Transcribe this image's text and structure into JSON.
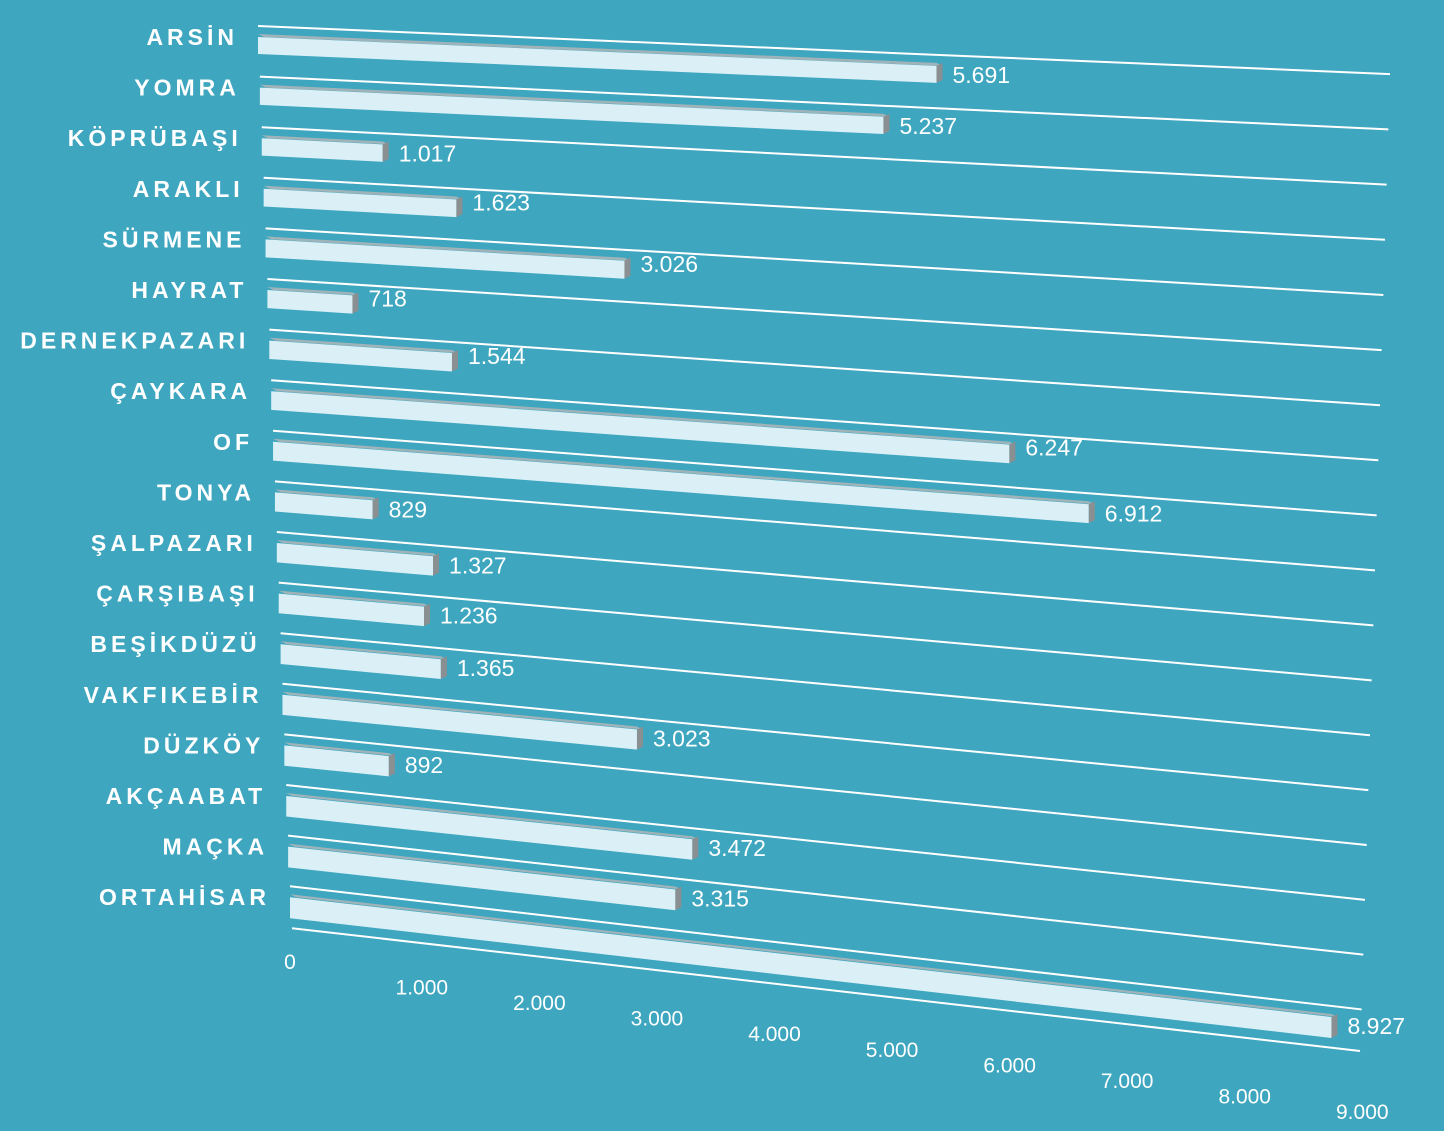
{
  "chart_data": {
    "type": "bar",
    "orientation": "horizontal",
    "categories": [
      "ARSİN",
      "YOMRA",
      "KÖPRÜBAŞI",
      "ARAKLI",
      "SÜRMENE",
      "HAYRAT",
      "DERNEKPAZARI",
      "ÇAYKARA",
      "OF",
      "TONYA",
      "ŞALPAZARI",
      "ÇARŞIBAŞI",
      "BEŞİKDÜZÜ",
      "VAKFIKEBİR",
      "DÜZKÖY",
      "AKÇAABAT",
      "MAÇKA",
      "ORTAHİSAR"
    ],
    "values": [
      5691,
      5237,
      1017,
      1623,
      3026,
      718,
      1544,
      6247,
      6912,
      829,
      1327,
      1236,
      1365,
      3023,
      892,
      3472,
      3315,
      8927
    ],
    "value_labels": [
      "5.691",
      "5.237",
      "1.017",
      "1.623",
      "3.026",
      "718",
      "1.544",
      "6.247",
      "6.912",
      "829",
      "1.327",
      "1.236",
      "1.365",
      "3.023",
      "892",
      "3.472",
      "3.315",
      "8.927"
    ],
    "ticks": [
      0,
      1000,
      2000,
      3000,
      4000,
      5000,
      6000,
      7000,
      8000,
      9000
    ],
    "tick_labels": [
      "0",
      "1.000",
      "2.000",
      "3.000",
      "4.000",
      "5.000",
      "6.000",
      "7.000",
      "8.000",
      "9.000"
    ],
    "xlim": [
      0,
      9000
    ],
    "grid": true,
    "style": "3d-perspective",
    "colors": {
      "background": "#3ea6bf",
      "bar": "#daf0f6",
      "text": "#ffffff"
    }
  }
}
